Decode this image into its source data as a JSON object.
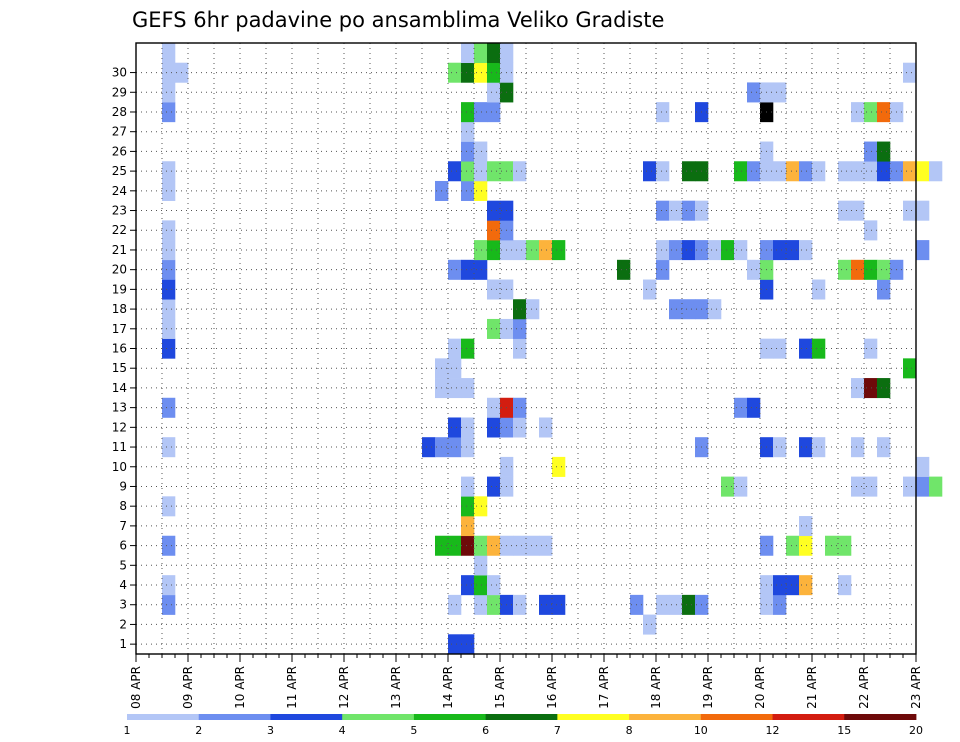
{
  "chart_data": {
    "type": "heatmap",
    "title": "GEFS 6hr padavine po ansamblima Veliko Gradiste",
    "xlabel": "",
    "ylabel": "",
    "x_range": [
      "08 APR 00Z",
      "23 APR 00Z"
    ],
    "y_range": [
      0,
      30
    ],
    "x_tick_labels": [
      "08 APR",
      "09 APR",
      "10 APR",
      "11 APR",
      "12 APR",
      "13 APR",
      "14 APR",
      "15 APR",
      "16 APR",
      "17 APR",
      "18 APR",
      "19 APR",
      "20 APR",
      "21 APR",
      "22 APR",
      "23 APR"
    ],
    "y_tick_labels": [
      "1",
      "2",
      "3",
      "4",
      "5",
      "6",
      "7",
      "8",
      "9",
      "10",
      "11",
      "12",
      "13",
      "14",
      "15",
      "16",
      "17",
      "18",
      "19",
      "20",
      "21",
      "22",
      "23",
      "24",
      "25",
      "26",
      "27",
      "28",
      "29",
      "30"
    ],
    "grid": true,
    "colorbar": {
      "labels": [
        "1",
        "2",
        "3",
        "4",
        "5",
        "6",
        "7",
        "8",
        "10",
        "12",
        "15",
        "20"
      ],
      "colors": [
        "#b3c6f6",
        "#6d8ef0",
        "#1f48de",
        "#70e56a",
        "#18b91b",
        "#0b6e10",
        "#ffff22",
        "#fcb33c",
        "#f26a0c",
        "#d31d10",
        "#6e0a0a"
      ]
    },
    "series": [
      {
        "member": 1,
        "cells": [
          [
            14.0,
            3
          ],
          [
            14.25,
            3
          ]
        ]
      },
      {
        "member": 2,
        "cells": [
          [
            17.75,
            1
          ]
        ]
      },
      {
        "member": 3,
        "cells": [
          [
            8.5,
            2
          ],
          [
            14.0,
            1
          ],
          [
            14.5,
            1
          ],
          [
            14.75,
            4
          ],
          [
            15.0,
            3
          ],
          [
            15.25,
            1
          ],
          [
            15.75,
            3
          ],
          [
            16.0,
            3
          ],
          [
            17.5,
            2
          ],
          [
            18.0,
            1
          ],
          [
            18.25,
            1
          ],
          [
            18.5,
            6
          ],
          [
            18.75,
            2
          ],
          [
            20.0,
            1
          ],
          [
            20.25,
            2
          ]
        ]
      },
      {
        "member": 4,
        "cells": [
          [
            8.5,
            1
          ],
          [
            14.25,
            3
          ],
          [
            14.5,
            5
          ],
          [
            14.75,
            1
          ],
          [
            20.0,
            1
          ],
          [
            20.25,
            3
          ],
          [
            20.5,
            3
          ],
          [
            20.75,
            8
          ],
          [
            21.5,
            1
          ]
        ]
      },
      {
        "member": 5,
        "cells": [
          [
            14.5,
            1
          ]
        ]
      },
      {
        "member": 6,
        "cells": [
          [
            8.5,
            2
          ],
          [
            13.75,
            5
          ],
          [
            14.0,
            5
          ],
          [
            14.25,
            11
          ],
          [
            14.5,
            4
          ],
          [
            14.75,
            8
          ],
          [
            15.0,
            1
          ],
          [
            15.25,
            1
          ],
          [
            15.5,
            1
          ],
          [
            15.75,
            1
          ],
          [
            20.0,
            2
          ],
          [
            20.5,
            4
          ],
          [
            20.75,
            7
          ],
          [
            21.25,
            4
          ],
          [
            21.5,
            4
          ]
        ]
      },
      {
        "member": 7,
        "cells": [
          [
            14.25,
            8
          ],
          [
            20.75,
            1
          ]
        ]
      },
      {
        "member": 8,
        "cells": [
          [
            8.5,
            1
          ],
          [
            14.25,
            5
          ],
          [
            14.5,
            7
          ]
        ]
      },
      {
        "member": 9,
        "cells": [
          [
            14.25,
            1
          ],
          [
            14.75,
            3
          ],
          [
            15.0,
            1
          ],
          [
            19.25,
            4
          ],
          [
            19.5,
            1
          ],
          [
            21.75,
            1
          ],
          [
            22.0,
            1
          ],
          [
            22.75,
            1
          ],
          [
            23.0,
            2
          ],
          [
            23.25,
            4
          ]
        ]
      },
      {
        "member": 10,
        "cells": [
          [
            15.0,
            1
          ],
          [
            16.0,
            7
          ],
          [
            23.0,
            1
          ]
        ]
      },
      {
        "member": 11,
        "cells": [
          [
            8.5,
            1
          ],
          [
            13.5,
            3
          ],
          [
            13.75,
            2
          ],
          [
            14.0,
            2
          ],
          [
            14.25,
            1
          ],
          [
            18.75,
            2
          ],
          [
            20.0,
            3
          ],
          [
            20.25,
            1
          ],
          [
            20.75,
            3
          ],
          [
            21.0,
            1
          ],
          [
            21.75,
            1
          ],
          [
            22.25,
            1
          ]
        ]
      },
      {
        "member": 12,
        "cells": [
          [
            14.0,
            3
          ],
          [
            14.25,
            1
          ],
          [
            14.75,
            3
          ],
          [
            15.0,
            2
          ],
          [
            15.25,
            1
          ],
          [
            15.75,
            1
          ]
        ]
      },
      {
        "member": 13,
        "cells": [
          [
            8.5,
            2
          ],
          [
            14.75,
            1
          ],
          [
            15.0,
            10
          ],
          [
            15.25,
            2
          ],
          [
            19.5,
            2
          ],
          [
            19.75,
            3
          ]
        ]
      },
      {
        "member": 14,
        "cells": [
          [
            13.75,
            1
          ],
          [
            14.0,
            1
          ],
          [
            14.25,
            1
          ],
          [
            21.75,
            1
          ],
          [
            22.0,
            11
          ],
          [
            22.25,
            6
          ]
        ]
      },
      {
        "member": 15,
        "cells": [
          [
            13.75,
            1
          ],
          [
            14.0,
            1
          ],
          [
            22.75,
            5
          ]
        ]
      },
      {
        "member": 16,
        "cells": [
          [
            8.5,
            3
          ],
          [
            14.0,
            1
          ],
          [
            14.25,
            5
          ],
          [
            15.25,
            1
          ],
          [
            20.0,
            1
          ],
          [
            20.25,
            1
          ],
          [
            20.75,
            3
          ],
          [
            21.0,
            5
          ],
          [
            22.0,
            1
          ]
        ]
      },
      {
        "member": 17,
        "cells": [
          [
            8.5,
            1
          ],
          [
            14.75,
            4
          ],
          [
            15.0,
            1
          ],
          [
            15.25,
            2
          ]
        ]
      },
      {
        "member": 18,
        "cells": [
          [
            8.5,
            1
          ],
          [
            15.25,
            6
          ],
          [
            15.5,
            1
          ],
          [
            18.25,
            2
          ],
          [
            18.5,
            2
          ],
          [
            18.75,
            2
          ],
          [
            19.0,
            1
          ]
        ]
      },
      {
        "member": 19,
        "cells": [
          [
            8.5,
            3
          ],
          [
            14.75,
            1
          ],
          [
            15.0,
            1
          ],
          [
            17.75,
            1
          ],
          [
            20.0,
            3
          ],
          [
            21.0,
            1
          ],
          [
            22.25,
            2
          ]
        ]
      },
      {
        "member": 20,
        "cells": [
          [
            8.5,
            2
          ],
          [
            14.0,
            2
          ],
          [
            14.25,
            3
          ],
          [
            14.5,
            3
          ],
          [
            17.25,
            6
          ],
          [
            18.0,
            2
          ],
          [
            19.75,
            1
          ],
          [
            20.0,
            4
          ],
          [
            21.5,
            4
          ],
          [
            21.75,
            9
          ],
          [
            22.0,
            5
          ],
          [
            22.25,
            4
          ],
          [
            22.5,
            2
          ]
        ]
      },
      {
        "member": 21,
        "cells": [
          [
            8.5,
            1
          ],
          [
            14.5,
            4
          ],
          [
            14.75,
            5
          ],
          [
            15.0,
            1
          ],
          [
            15.25,
            1
          ],
          [
            15.5,
            4
          ],
          [
            15.75,
            8
          ],
          [
            16.0,
            5
          ],
          [
            18.0,
            1
          ],
          [
            18.25,
            2
          ],
          [
            18.5,
            3
          ],
          [
            18.75,
            2
          ],
          [
            19.0,
            1
          ],
          [
            19.25,
            5
          ],
          [
            19.5,
            1
          ],
          [
            20.0,
            2
          ],
          [
            20.25,
            3
          ],
          [
            20.5,
            3
          ],
          [
            20.75,
            1
          ],
          [
            23.0,
            2
          ]
        ]
      },
      {
        "member": 22,
        "cells": [
          [
            8.5,
            1
          ],
          [
            14.75,
            9
          ],
          [
            15.0,
            2
          ],
          [
            22.0,
            1
          ]
        ]
      },
      {
        "member": 23,
        "cells": [
          [
            14.75,
            3
          ],
          [
            15.0,
            3
          ],
          [
            18.0,
            2
          ],
          [
            18.25,
            1
          ],
          [
            18.5,
            2
          ],
          [
            18.75,
            1
          ],
          [
            21.5,
            1
          ],
          [
            21.75,
            1
          ],
          [
            22.75,
            1
          ],
          [
            23.0,
            1
          ]
        ]
      },
      {
        "member": 24,
        "cells": [
          [
            8.5,
            1
          ],
          [
            13.75,
            2
          ],
          [
            14.25,
            2
          ],
          [
            14.5,
            7
          ]
        ]
      },
      {
        "member": 25,
        "cells": [
          [
            8.5,
            1
          ],
          [
            14.0,
            3
          ],
          [
            14.25,
            4
          ],
          [
            14.5,
            1
          ],
          [
            14.75,
            4
          ],
          [
            15.0,
            4
          ],
          [
            15.25,
            1
          ],
          [
            17.75,
            3
          ],
          [
            18.0,
            1
          ],
          [
            18.5,
            6
          ],
          [
            18.75,
            6
          ],
          [
            19.5,
            5
          ],
          [
            19.75,
            2
          ],
          [
            20.0,
            1
          ],
          [
            20.25,
            1
          ],
          [
            20.5,
            8
          ],
          [
            20.75,
            2
          ],
          [
            21.0,
            1
          ],
          [
            21.5,
            1
          ],
          [
            21.75,
            1
          ],
          [
            22.0,
            1
          ],
          [
            22.25,
            3
          ],
          [
            22.5,
            2
          ],
          [
            22.75,
            8
          ],
          [
            23.0,
            7
          ],
          [
            23.25,
            1
          ]
        ]
      },
      {
        "member": 26,
        "cells": [
          [
            14.25,
            2
          ],
          [
            14.5,
            1
          ],
          [
            20.0,
            1
          ],
          [
            22.0,
            2
          ],
          [
            22.25,
            6
          ]
        ]
      },
      {
        "member": 27,
        "cells": [
          [
            14.25,
            1
          ]
        ]
      },
      {
        "member": 28,
        "cells": [
          [
            8.5,
            2
          ],
          [
            14.25,
            5
          ],
          [
            14.5,
            2
          ],
          [
            14.75,
            2
          ],
          [
            18.0,
            1
          ],
          [
            18.75,
            3
          ],
          [
            20.0,
            12
          ],
          [
            21.75,
            1
          ],
          [
            22.0,
            4
          ],
          [
            22.25,
            9
          ],
          [
            22.5,
            1
          ]
        ]
      },
      {
        "member": 29,
        "cells": [
          [
            8.5,
            1
          ],
          [
            14.75,
            1
          ],
          [
            15.0,
            6
          ],
          [
            19.75,
            2
          ],
          [
            20.0,
            1
          ],
          [
            20.25,
            1
          ]
        ]
      },
      {
        "member": 30,
        "cells": [
          [
            8.5,
            1
          ],
          [
            8.75,
            1
          ],
          [
            14.0,
            4
          ],
          [
            14.25,
            6
          ],
          [
            14.5,
            7
          ],
          [
            14.75,
            5
          ],
          [
            15.0,
            1
          ],
          [
            22.75,
            1
          ]
        ]
      },
      {
        "member": 31,
        "cells": [
          [
            8.5,
            1
          ],
          [
            14.25,
            1
          ],
          [
            14.5,
            4
          ],
          [
            14.75,
            6
          ],
          [
            15.0,
            1
          ]
        ]
      }
    ]
  }
}
